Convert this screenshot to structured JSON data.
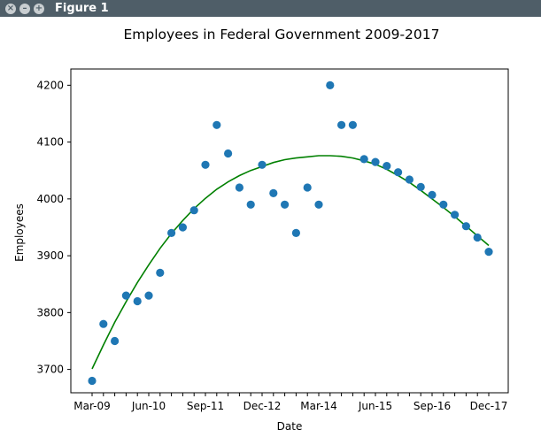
{
  "window": {
    "title": "Figure 1",
    "buttons": [
      {
        "name": "close-icon",
        "glyph": "×"
      },
      {
        "name": "minimize-icon",
        "glyph": "–"
      },
      {
        "name": "maximize-icon",
        "glyph": "+"
      }
    ]
  },
  "chart_data": {
    "type": "scatter",
    "title": "Employees in Federal Government 2009-2017",
    "xlabel": "Date",
    "ylabel": "Employees",
    "x_tick_labels": [
      "Mar-09",
      "Jun-10",
      "Sep-11",
      "Dec-12",
      "Mar-14",
      "Jun-15",
      "Sep-16",
      "Dec-17"
    ],
    "y_ticks": [
      3700,
      3800,
      3900,
      4000,
      4100,
      4200
    ],
    "ylim": [
      3650,
      4230
    ],
    "x": [
      "Mar-09",
      "Jun-09",
      "Sep-09",
      "Dec-09",
      "Mar-10",
      "Jun-10",
      "Sep-10",
      "Dec-10",
      "Mar-11",
      "Jun-11",
      "Sep-11",
      "Dec-11",
      "Mar-12",
      "Jun-12",
      "Sep-12",
      "Dec-12",
      "Mar-13",
      "Jun-13",
      "Sep-13",
      "Dec-13",
      "Mar-14",
      "Jun-14",
      "Sep-14",
      "Dec-14",
      "Mar-15",
      "Jun-15",
      "Sep-15",
      "Dec-15",
      "Mar-16",
      "Jun-16",
      "Sep-16",
      "Dec-16",
      "Mar-17",
      "Jun-17",
      "Sep-17",
      "Dec-17"
    ],
    "series": [
      {
        "type": "scatter",
        "color": "#1f77b4",
        "values": [
          3680,
          3780,
          3750,
          3830,
          3820,
          3830,
          3870,
          3940,
          3950,
          3980,
          4060,
          4130,
          4080,
          4020,
          3990,
          4060,
          4010,
          3990,
          3940,
          4020,
          3990,
          4200,
          4130,
          4130,
          4070,
          4065,
          4058,
          4047,
          4034,
          4021,
          4007,
          3990,
          3972,
          3952,
          3932,
          3907
        ]
      },
      {
        "type": "line",
        "color": "#008000",
        "values": [
          3701,
          3743,
          3783,
          3819,
          3853,
          3884,
          3913,
          3939,
          3962,
          3983,
          4001,
          4017,
          4030,
          4041,
          4050,
          4057,
          4064,
          4069,
          4072,
          4074,
          4076,
          4076,
          4075,
          4072,
          4067,
          4061,
          4052,
          4041,
          4029,
          4015,
          4000,
          3985,
          3969,
          3952,
          3935,
          3918
        ]
      }
    ],
    "grid": false,
    "legend": "none"
  }
}
